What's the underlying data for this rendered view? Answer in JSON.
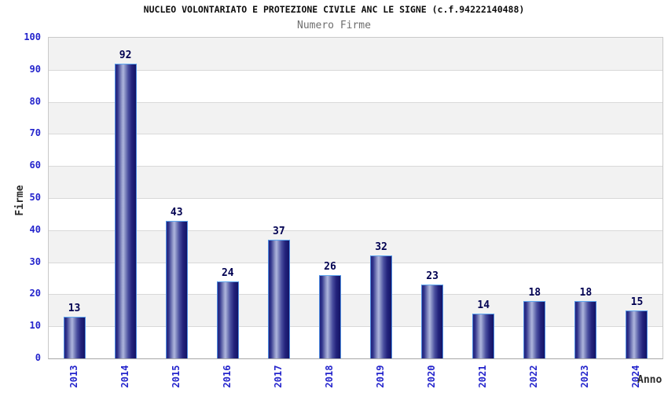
{
  "chart_data": {
    "type": "bar",
    "title": "NUCLEO VOLONTARIATO E PROTEZIONE CIVILE ANC LE SIGNE (c.f.94222140488)",
    "subtitle": "Numero Firme",
    "xlabel": "Anno",
    "ylabel": "Firme",
    "categories": [
      "2013",
      "2014",
      "2015",
      "2016",
      "2017",
      "2018",
      "2019",
      "2020",
      "2021",
      "2022",
      "2023",
      "2024"
    ],
    "values": [
      13,
      92,
      43,
      24,
      37,
      26,
      32,
      23,
      14,
      18,
      18,
      15
    ],
    "ylim": [
      0,
      100
    ],
    "yticks": [
      0,
      10,
      20,
      30,
      40,
      50,
      60,
      70,
      80,
      90,
      100
    ],
    "grid": true,
    "legend": false,
    "bar_value_labels": true,
    "band_fill_alternating": true
  },
  "colors": {
    "background": "#ffffff",
    "title": "#0d0d0d",
    "subtitle": "#6e6e6e",
    "axis_tick_label": "#2424cc",
    "value_label": "#000051",
    "axis_title": "#2b2b2b",
    "plot_border": "#c9c9c9",
    "grid_line": "#d9d9d9",
    "band_gray": "#f2f2f2",
    "band_white": "#ffffff",
    "axis_line": "#a8a8a8",
    "bar_border": "#4e8ce0",
    "bar_top_edge": "#5fa8f0",
    "bar_gradient": [
      [
        "#23237d",
        "0%"
      ],
      [
        "#30348b",
        "10%"
      ],
      [
        "#9097c8",
        "30%"
      ],
      [
        "#aeb5dd",
        "38%"
      ],
      [
        "#8a92c6",
        "46%"
      ],
      [
        "#4a4f9f",
        "62%"
      ],
      [
        "#23237c",
        "80%"
      ],
      [
        "#131366",
        "100%"
      ]
    ]
  }
}
